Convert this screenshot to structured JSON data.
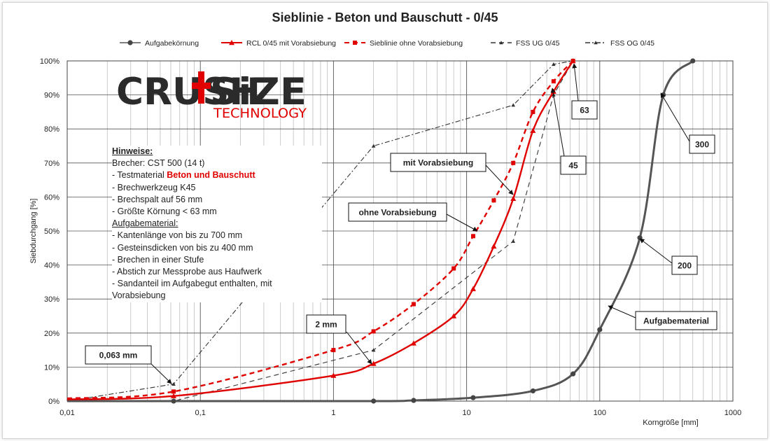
{
  "chart_data": {
    "type": "line",
    "title": "Sieblinie - Beton und Bauschutt - 0/45",
    "xlabel": "Korngröße [mm]",
    "ylabel": "Siebdurchgang [%]",
    "x_scale": "log",
    "xlim": [
      0.01,
      1000
    ],
    "ylim": [
      0,
      100
    ],
    "x_ticks": [
      {
        "value": 0.01,
        "label": "0,01"
      },
      {
        "value": 0.1,
        "label": "0,1"
      },
      {
        "value": 1,
        "label": "1"
      },
      {
        "value": 10,
        "label": "10"
      },
      {
        "value": 100,
        "label": "100"
      },
      {
        "value": 1000,
        "label": "1000"
      }
    ],
    "y_ticks": [
      {
        "value": 0,
        "label": "0%"
      },
      {
        "value": 10,
        "label": "10%"
      },
      {
        "value": 20,
        "label": "20%"
      },
      {
        "value": 30,
        "label": "30%"
      },
      {
        "value": 40,
        "label": "40%"
      },
      {
        "value": 50,
        "label": "50%"
      },
      {
        "value": 60,
        "label": "60%"
      },
      {
        "value": 70,
        "label": "70%"
      },
      {
        "value": 80,
        "label": "80%"
      },
      {
        "value": 90,
        "label": "90%"
      },
      {
        "value": 100,
        "label": "100%"
      }
    ],
    "grid": true,
    "legend_position": "top",
    "series": [
      {
        "name": "Aufgabekörnung",
        "color": "#555555",
        "style": "solid",
        "marker": "circle",
        "x": [
          0.01,
          0.063,
          2,
          4,
          11.2,
          31.5,
          63,
          100,
          200,
          300,
          500
        ],
        "y": [
          0,
          0,
          0,
          0.2,
          1,
          3,
          8,
          21,
          48,
          90,
          100
        ]
      },
      {
        "name": "RCL 0/45 mit Vorabsiebung",
        "color": "#e00000",
        "style": "solid",
        "marker": "triangle",
        "x": [
          0.01,
          0.063,
          1,
          2,
          4,
          8,
          11.2,
          16,
          22.4,
          31.5,
          45,
          63
        ],
        "y": [
          0.5,
          1.5,
          7.5,
          11,
          17,
          25,
          33,
          45.5,
          59.5,
          79.5,
          91,
          100
        ]
      },
      {
        "name": "Sieblinie ohne Vorabsiebung",
        "color": "#e00000",
        "style": "dashed",
        "marker": "square",
        "x": [
          0.01,
          0.063,
          1,
          2,
          4,
          8,
          11.2,
          16,
          22.4,
          31.5,
          45,
          63
        ],
        "y": [
          0.8,
          2.8,
          15,
          20.5,
          28.5,
          39,
          48.5,
          59,
          70,
          85,
          94,
          100
        ]
      },
      {
        "name": "FSS UG 0/45",
        "color": "#333333",
        "style": "dashed",
        "marker": "small-triangle",
        "x": [
          0.01,
          0.063,
          2,
          22.4,
          45,
          63
        ],
        "y": [
          0,
          0,
          15,
          47,
          90,
          100
        ]
      },
      {
        "name": "FSS OG 0/45",
        "color": "#333333",
        "style": "dashdot",
        "marker": "small-triangle",
        "x": [
          0.01,
          0.063,
          2,
          22.4,
          45,
          63
        ],
        "y": [
          0,
          5,
          75,
          87,
          99,
          100
        ]
      }
    ],
    "annotations": [
      {
        "text": "63",
        "x": 63,
        "y": 100
      },
      {
        "text": "45",
        "x": 45,
        "y": 90
      },
      {
        "text": "300",
        "x": 300,
        "y": 90
      },
      {
        "text": "mit Vorabsiebung",
        "x": 24,
        "y": 62
      },
      {
        "text": "ohne Vorabsiebung",
        "x": 11.2,
        "y": 48
      },
      {
        "text": "200",
        "x": 200,
        "y": 48
      },
      {
        "text": "Aufgabematerial",
        "x": 120,
        "y": 28
      },
      {
        "text": "2 mm",
        "x": 2,
        "y": 11
      },
      {
        "text": "0,063 mm",
        "x": 0.063,
        "y": 5
      }
    ]
  },
  "logo": {
    "word_left": "CRUSH",
    "word_right": "SiZE",
    "sub": "TECHNOLOGY"
  },
  "notes": {
    "heading1": "Hinweise:",
    "line1": "Brecher: CST 500 (14 t)",
    "line2_prefix": "- Testmaterial ",
    "line2_highlight": "Beton und Bauschutt",
    "line3": "- Brechwerkzeug K45",
    "line4": "- Brechspalt auf 56 mm",
    "line5": "- Größte Körnung < 63 mm",
    "heading2": "Aufgabematerial:",
    "line6": "- Kantenlänge von bis zu 700 mm",
    "line7": "- Gesteinsdicken von bis zu 400 mm",
    "line8": "- Brechen in einer Stufe",
    "line9": "- Abstich zur Messprobe aus Haufwerk",
    "line10": "- Sandanteil im Aufgabegut enthalten, mit Vorabsiebung"
  },
  "colors": {
    "red": "#e00000",
    "gray": "#555555",
    "dark": "#333333",
    "grid": "#bdbdbd",
    "logo_dark": "#2b2b2b"
  }
}
